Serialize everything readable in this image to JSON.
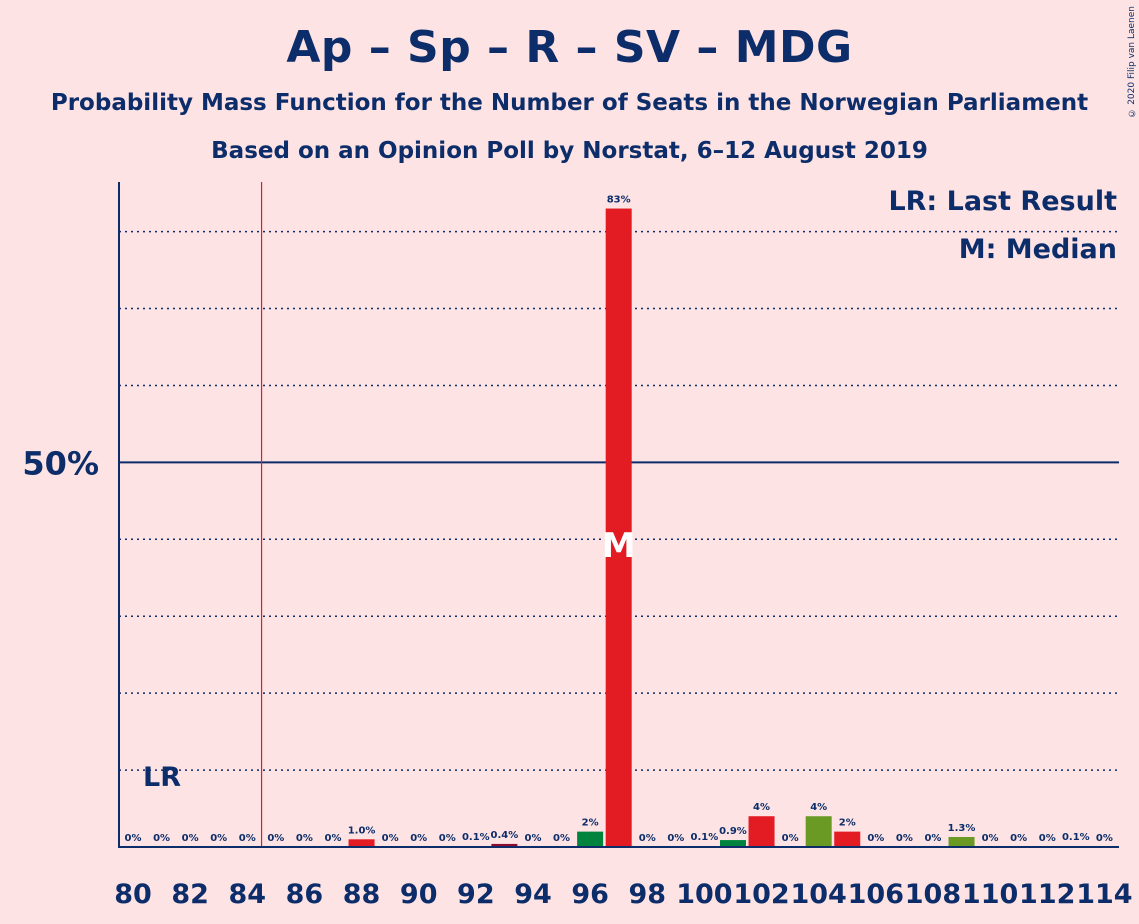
{
  "header": {
    "title": "Ap – Sp – R – SV – MDG",
    "subtitle": "Probability Mass Function for the Number of Seats in the Norwegian Parliament",
    "subtitle2": "Based on an Opinion Poll by Norstat, 6–12 August 2019",
    "copyright": "© 2020 Filip van Laenen"
  },
  "chart_data": {
    "type": "bar",
    "x": [
      80,
      81,
      82,
      83,
      84,
      85,
      86,
      87,
      88,
      89,
      90,
      91,
      92,
      93,
      94,
      95,
      96,
      97,
      98,
      99,
      100,
      101,
      102,
      103,
      104,
      105,
      106,
      107,
      108,
      109,
      110,
      111,
      112,
      113,
      114
    ],
    "values": [
      0,
      0,
      0,
      0,
      0,
      0,
      0,
      0,
      1.0,
      0,
      0,
      0,
      0.1,
      0.4,
      0,
      0,
      2,
      83,
      0,
      0,
      0.1,
      0.9,
      4,
      0,
      4,
      2,
      0,
      0,
      0,
      1.3,
      0,
      0,
      0,
      0.1,
      0
    ],
    "labels": [
      "0%",
      "0%",
      "0%",
      "0%",
      "0%",
      "0%",
      "0%",
      "0%",
      "1.0%",
      "0%",
      "0%",
      "0%",
      "0.1%",
      "0.4%",
      "0%",
      "0%",
      "2%",
      "83%",
      "0%",
      "0%",
      "0.1%",
      "0.9%",
      "4%",
      "0%",
      "4%",
      "2%",
      "0%",
      "0%",
      "0%",
      "1.3%",
      "0%",
      "0%",
      "0%",
      "0.1%",
      "0%"
    ],
    "colors": [
      "#e31b23",
      "#e31b23",
      "#e31b23",
      "#e31b23",
      "#e31b23",
      "#e31b23",
      "#e31b23",
      "#e31b23",
      "#e31b23",
      "#e31b23",
      "#e31b23",
      "#e31b23",
      "#e31b23",
      "#8b0c2e",
      "#e31b23",
      "#e31b23",
      "#00843d",
      "#e31b23",
      "#e31b23",
      "#e31b23",
      "#e31b23",
      "#00843d",
      "#e31b23",
      "#e31b23",
      "#6a9a23",
      "#e31b23",
      "#e31b23",
      "#e31b23",
      "#e31b23",
      "#6a9a23",
      "#e31b23",
      "#e31b23",
      "#e31b23",
      "#e31b23",
      "#e31b23"
    ],
    "xticks": [
      "80",
      "82",
      "84",
      "86",
      "88",
      "90",
      "92",
      "94",
      "96",
      "98",
      "100",
      "102",
      "104",
      "106",
      "108",
      "110",
      "112",
      "114"
    ],
    "ylabel_tick": "50%",
    "ylim": [
      0,
      91
    ],
    "gridlines": [
      10,
      20,
      30,
      40,
      60,
      70,
      80
    ],
    "majorline": 50,
    "last_result": 85,
    "last_result_label": "LR",
    "median": 97,
    "median_label": "M",
    "legend": [
      "LR: Last Result",
      "M: Median"
    ],
    "accent_line_color": "#e31b23",
    "axis_color": "#0c2d69"
  }
}
